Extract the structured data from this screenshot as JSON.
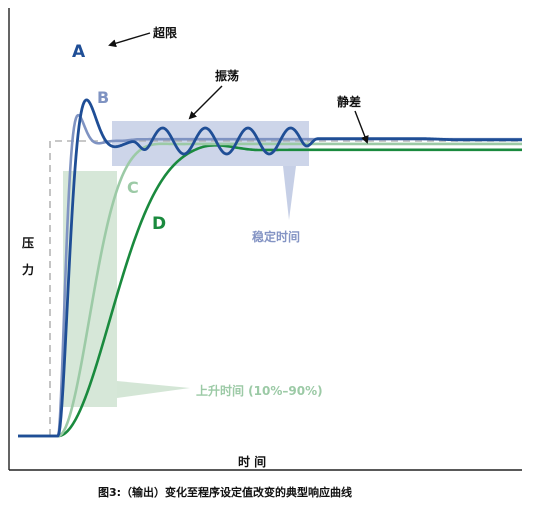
{
  "labels": {
    "overshoot": "超限",
    "oscillation": "振荡",
    "static_error": "静差",
    "settling_time": "稳定时间",
    "rise_time": "上升时间 (10%–90%)",
    "y_axis_top": "压",
    "y_axis_bottom": "力",
    "x_axis": "时 间"
  },
  "curves": [
    {
      "id": "A",
      "label": "A",
      "color": "#1f4e96"
    },
    {
      "id": "B",
      "label": "B",
      "color": "#7f93c2"
    },
    {
      "id": "C",
      "label": "C",
      "color": "#9ccaa6"
    },
    {
      "id": "D",
      "label": "D",
      "color": "#1a8a3e"
    }
  ],
  "caption": "图3:（输出）变化至程序设定值改变的典型响应曲线",
  "colors": {
    "setpoint_dash": "#b5b5b5",
    "settling_band": "#b8c3e0",
    "rise_band": "#cfe3d1",
    "axis": "#222222"
  }
}
